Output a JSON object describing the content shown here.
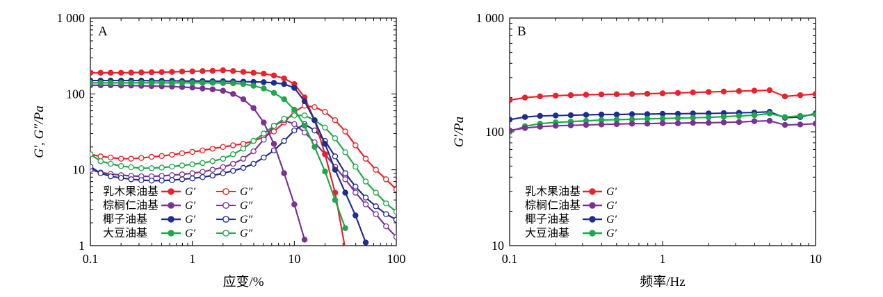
{
  "colors": {
    "red": "#e8232a",
    "purple": "#7b3294",
    "blue": "#1f2d8f",
    "green": "#1fa84a",
    "axis": "#000000"
  },
  "chart_data": [
    {
      "type": "line",
      "panel_label": "A",
      "xlabel": "应变/%",
      "ylabel": "G′, G″/Pa",
      "xscale": "log",
      "yscale": "log",
      "xlim": [
        0.1,
        100
      ],
      "ylim": [
        1,
        1000
      ],
      "xticks": [
        0.1,
        1,
        10,
        100
      ],
      "xtick_labels": [
        "0.1",
        "1",
        "10",
        "100"
      ],
      "yticks": [
        1,
        10,
        100,
        1000
      ],
      "ytick_labels": [
        "1",
        "10",
        "100",
        "1 000"
      ],
      "x": [
        0.1,
        0.126,
        0.158,
        0.2,
        0.251,
        0.316,
        0.398,
        0.501,
        0.631,
        0.794,
        1.0,
        1.26,
        1.58,
        2.0,
        2.51,
        3.16,
        3.98,
        5.01,
        6.31,
        7.94,
        10.0,
        12.6,
        15.8,
        20.0,
        25.1,
        31.6,
        39.8,
        50.1,
        63.1,
        79.4,
        100
      ],
      "legend_placement": "lower-left",
      "legend": {
        "rows": [
          {
            "label": "乳木果油基",
            "solid_symbol": "G′",
            "open_symbol": "G″",
            "color": "#e8232a"
          },
          {
            "label": "棕榈仁油基",
            "solid_symbol": "G′",
            "open_symbol": "G″",
            "color": "#7b3294"
          },
          {
            "label": "椰子油基",
            "solid_symbol": "G′",
            "open_symbol": "G″",
            "color": "#1f2d8f"
          },
          {
            "label": "大豆油基",
            "solid_symbol": "G′",
            "open_symbol": "G″",
            "color": "#1fa84a"
          }
        ]
      },
      "series": [
        {
          "color": "#e8232a",
          "filled": true,
          "values": [
            190,
            190,
            190,
            190,
            191,
            192,
            193,
            194,
            195,
            197,
            198,
            200,
            202,
            205,
            200,
            195,
            190,
            185,
            175,
            160,
            135,
            90,
            45,
            16,
            5,
            0.9,
            null,
            null,
            null,
            null,
            null
          ]
        },
        {
          "color": "#e8232a",
          "filled": false,
          "values": [
            16,
            15,
            14.5,
            14,
            14,
            14.3,
            14.8,
            15.2,
            15.8,
            16.5,
            17.2,
            18,
            19,
            20,
            21,
            22,
            24,
            27,
            32,
            42,
            58,
            70,
            67,
            58,
            45,
            32,
            21,
            14,
            10,
            7.5,
            5.5
          ]
        },
        {
          "color": "#7b3294",
          "filled": true,
          "values": [
            130,
            130,
            130,
            129,
            129,
            128,
            127,
            126,
            125,
            123,
            121,
            118,
            115,
            110,
            100,
            85,
            65,
            42,
            22,
            9,
            3.5,
            1.2,
            null,
            null,
            null,
            null,
            null,
            null,
            null,
            null,
            null
          ]
        },
        {
          "color": "#7b3294",
          "filled": false,
          "values": [
            10,
            9.2,
            8.8,
            8.5,
            8.3,
            8.2,
            8.2,
            8.3,
            8.5,
            8.7,
            9,
            9.4,
            10,
            10.8,
            12,
            14,
            17.5,
            25,
            38,
            45,
            40,
            31,
            23,
            16,
            11,
            7.5,
            5,
            3.5,
            2.6,
            1.8,
            1.3
          ]
        },
        {
          "color": "#1f2d8f",
          "filled": true,
          "values": [
            150,
            150,
            150,
            150,
            150,
            150,
            149,
            149,
            149,
            148,
            148,
            148,
            147,
            147,
            146,
            145,
            144,
            143,
            140,
            135,
            120,
            80,
            45,
            22,
            10,
            5,
            2.5,
            1.1,
            null,
            null,
            null
          ]
        },
        {
          "color": "#1f2d8f",
          "filled": false,
          "values": [
            11,
            9,
            8.2,
            7.8,
            7.5,
            7.3,
            7.2,
            7.2,
            7.3,
            7.5,
            7.7,
            8,
            8.4,
            9,
            9.7,
            10.6,
            12,
            14.5,
            18,
            24,
            33,
            40,
            33,
            24,
            15,
            9,
            6,
            4.3,
            3.3,
            2.6,
            2.2
          ]
        },
        {
          "color": "#1fa84a",
          "filled": true,
          "values": [
            140,
            140,
            140,
            140,
            140,
            140,
            140,
            140,
            140,
            140,
            140,
            140,
            140,
            139,
            138,
            135,
            128,
            118,
            103,
            85,
            62,
            38,
            20,
            9.5,
            4,
            1.7,
            null,
            null,
            null,
            null,
            null
          ]
        },
        {
          "color": "#1fa84a",
          "filled": false,
          "values": [
            16,
            13,
            12,
            11.2,
            10.8,
            10.5,
            10.5,
            10.7,
            11,
            11.4,
            11.8,
            12.3,
            13,
            14,
            16,
            19,
            24,
            30,
            38,
            47,
            52,
            52,
            45,
            36,
            26,
            17,
            11,
            7,
            5,
            3.6,
            2.8
          ]
        }
      ]
    },
    {
      "type": "line",
      "panel_label": "B",
      "xlabel": "频率/Hz",
      "ylabel": "G′/Pa",
      "xscale": "log",
      "yscale": "log",
      "xlim": [
        0.1,
        10
      ],
      "ylim": [
        10,
        1000
      ],
      "xticks": [
        0.1,
        1,
        10
      ],
      "xtick_labels": [
        "0.1",
        "1",
        "10"
      ],
      "yticks": [
        10,
        100,
        1000
      ],
      "ytick_labels": [
        "10",
        "100",
        "1 000"
      ],
      "x": [
        0.1,
        0.126,
        0.158,
        0.2,
        0.251,
        0.316,
        0.398,
        0.501,
        0.631,
        0.794,
        1.0,
        1.26,
        1.58,
        2.0,
        2.51,
        3.16,
        3.98,
        5.01,
        6.31,
        7.94,
        10.0
      ],
      "legend_placement": "lower-left",
      "legend": {
        "rows": [
          {
            "label": "乳木果油基",
            "symbol": "G′",
            "color": "#e8232a"
          },
          {
            "label": "棕榈仁油基",
            "symbol": "G′",
            "color": "#7b3294"
          },
          {
            "label": "椰子油基",
            "symbol": "G′",
            "color": "#1f2d8f"
          },
          {
            "label": "大豆油基",
            "symbol": "G′",
            "color": "#1fa84a"
          }
        ]
      },
      "series": [
        {
          "color": "#e8232a",
          "filled": true,
          "values": [
            190,
            200,
            205,
            208,
            210,
            212,
            213,
            214,
            215,
            216,
            218,
            220,
            222,
            224,
            226,
            228,
            230,
            232,
            205,
            210,
            215
          ]
        },
        {
          "color": "#1f2d8f",
          "filled": true,
          "values": [
            128,
            135,
            138,
            139,
            140,
            141,
            142,
            142,
            143,
            143,
            144,
            144,
            145,
            145,
            146,
            147,
            148,
            150,
            133,
            135,
            145
          ]
        },
        {
          "color": "#1fa84a",
          "filled": true,
          "values": [
            100,
            112,
            118,
            121,
            123,
            125,
            127,
            128,
            129,
            130,
            131,
            132,
            133,
            134,
            136,
            138,
            140,
            145,
            135,
            138,
            142
          ]
        },
        {
          "color": "#7b3294",
          "filled": true,
          "values": [
            103,
            108,
            111,
            113,
            114,
            115,
            116,
            117,
            118,
            118,
            119,
            119,
            120,
            120,
            121,
            122,
            124,
            125,
            115,
            116,
            118
          ]
        }
      ]
    }
  ]
}
